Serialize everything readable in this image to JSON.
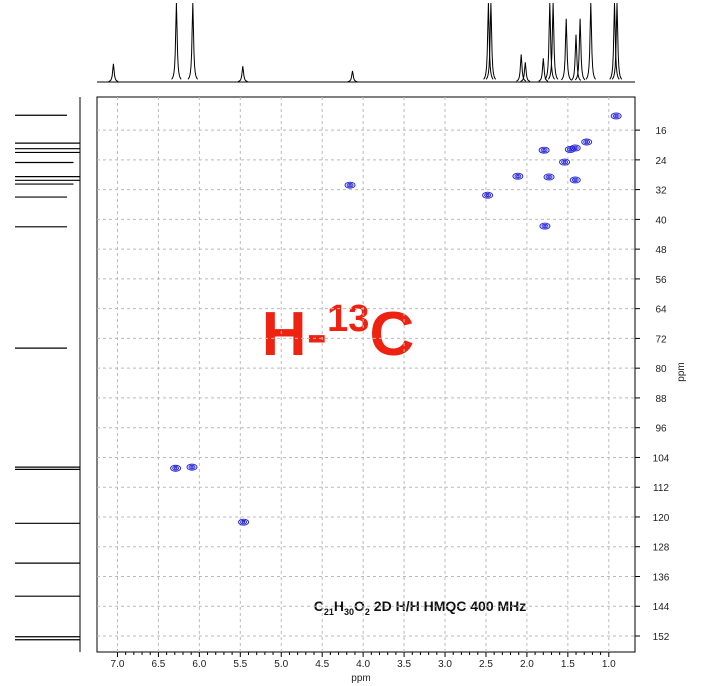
{
  "chart_data": {
    "type": "scatter",
    "title_parts": [
      "C",
      "21",
      "H",
      "30",
      "O",
      "2",
      " 2D H/H HMQC 400 MHz"
    ],
    "annotation_parts": [
      "H-",
      "13",
      "C"
    ],
    "x_label": "ppm",
    "y_label": "ppm",
    "xlim": [
      7.25,
      0.68
    ],
    "ylim": [
      7.1,
      156.3
    ],
    "xticks": [
      {
        "value": 7,
        "label": "7.0"
      },
      {
        "value": 6.5,
        "label": "6.5"
      },
      {
        "value": 6,
        "label": "6.0"
      },
      {
        "value": 5.5,
        "label": "5.5"
      },
      {
        "value": 5,
        "label": "5.0"
      },
      {
        "value": 4.5,
        "label": "4.5"
      },
      {
        "value": 4,
        "label": "4.0"
      },
      {
        "value": 3.5,
        "label": "3.5"
      },
      {
        "value": 3,
        "label": "3.0"
      },
      {
        "value": 2.5,
        "label": "2.5"
      },
      {
        "value": 2,
        "label": "2.0"
      },
      {
        "value": 1.5,
        "label": "1.5"
      },
      {
        "value": 1,
        "label": "1.0"
      }
    ],
    "yticks": [
      16,
      24,
      32,
      40,
      48,
      56,
      64,
      72,
      80,
      88,
      96,
      104,
      112,
      120,
      128,
      136,
      144,
      152
    ],
    "grid": true,
    "color": "#1f1fd6",
    "x": [
      0.91,
      1.27,
      1.41,
      1.47,
      1.79,
      1.54,
      2.11,
      1.73,
      1.41,
      4.16,
      2.48,
      1.78,
      6.29,
      6.09,
      5.46
    ],
    "values": [
      12.2,
      19.2,
      20.8,
      21.2,
      21.4,
      24.6,
      28.4,
      28.6,
      29.4,
      30.8,
      33.5,
      41.8,
      106.9,
      106.6,
      121.4
    ],
    "h_projection": {
      "x": [
        7.05,
        6.28,
        6.08,
        5.47,
        4.13,
        2.47,
        2.44,
        2.07,
        2.02,
        1.8,
        1.72,
        1.68,
        1.52,
        1.4,
        1.35,
        1.22,
        0.93,
        0.9
      ],
      "values": [
        23,
        100,
        100,
        20,
        14,
        100,
        100,
        35,
        25,
        30,
        100,
        100,
        80,
        60,
        80,
        100,
        100,
        100
      ]
    },
    "c_projection": {
      "x": [
        12,
        19.5,
        21,
        22,
        24.7,
        28.5,
        29.5,
        30.5,
        34,
        42,
        74.6,
        106.6,
        107.2,
        121.7,
        132.4,
        141.3,
        152.2,
        153
      ],
      "values": [
        80,
        100,
        100,
        100,
        90,
        100,
        100,
        90,
        80,
        80,
        80,
        100,
        100,
        100,
        100,
        100,
        100,
        100
      ]
    }
  }
}
